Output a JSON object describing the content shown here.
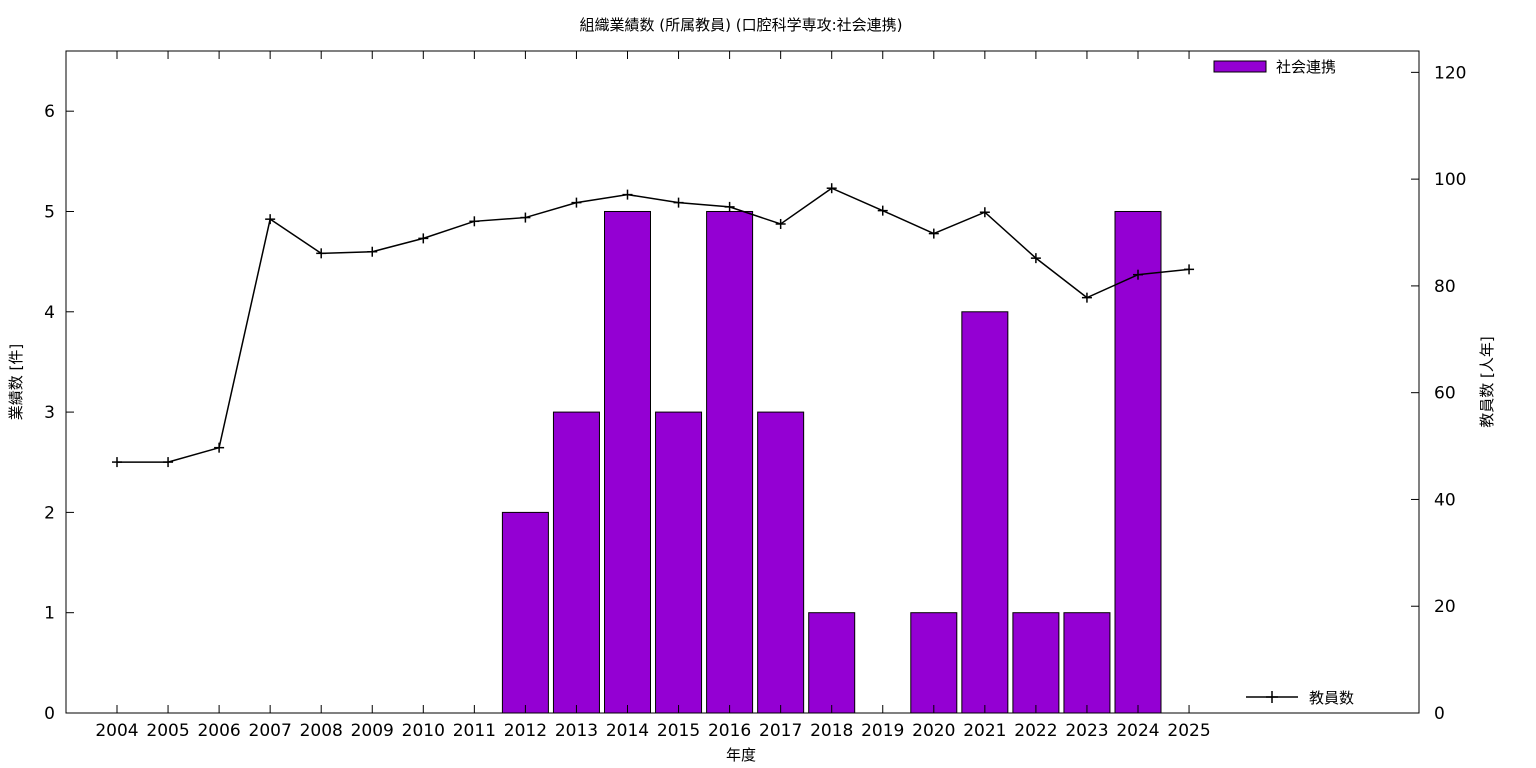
{
  "chart_data": {
    "type": "bar",
    "title": "組織業績数 (所属教員) (口腔科学専攻:社会連携)",
    "xlabel": "年度",
    "ylabel": "業績数 [件]",
    "y2label": "教員数 [人年]",
    "categories": [
      "2004",
      "2005",
      "2006",
      "2007",
      "2008",
      "2009",
      "2010",
      "2011",
      "2012",
      "2013",
      "2014",
      "2015",
      "2016",
      "2017",
      "2018",
      "2019",
      "2020",
      "2021",
      "2022",
      "2023",
      "2024",
      "2025"
    ],
    "ylim": [
      0,
      6.6
    ],
    "yticks": [
      0,
      1,
      2,
      3,
      4,
      5,
      6
    ],
    "y2lim": [
      0,
      124
    ],
    "y2ticks": [
      0,
      20,
      40,
      60,
      80,
      100,
      120
    ],
    "grid": false,
    "series": [
      {
        "name": "社会連携",
        "type": "bar",
        "axis": "left",
        "color": "#9400d3",
        "values": [
          0,
          0,
          0,
          0,
          0,
          0,
          0,
          0,
          2,
          3,
          5,
          3,
          5,
          3,
          1,
          0,
          1,
          4,
          1,
          1,
          5,
          0
        ]
      },
      {
        "name": "教員数",
        "type": "line",
        "axis": "right",
        "color": "#000000",
        "marker": "plus",
        "values": [
          47,
          47,
          49.7,
          92.5,
          86.1,
          86.4,
          88.9,
          92.1,
          92.8,
          95.6,
          97.1,
          95.6,
          94.8,
          91.6,
          98.3,
          94.1,
          89.8,
          93.8,
          85.2,
          77.8,
          82.1,
          83.1
        ]
      }
    ],
    "legend": [
      {
        "label": "社会連携",
        "position": "top-right"
      },
      {
        "label": "教員数",
        "position": "bottom-right"
      }
    ]
  }
}
